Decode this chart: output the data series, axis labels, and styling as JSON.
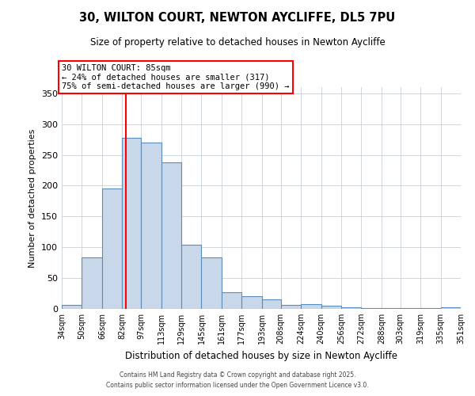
{
  "title": "30, WILTON COURT, NEWTON AYCLIFFE, DL5 7PU",
  "subtitle": "Size of property relative to detached houses in Newton Aycliffe",
  "xlabel": "Distribution of detached houses by size in Newton Aycliffe",
  "ylabel": "Number of detached properties",
  "bar_color": "#c8d8ea",
  "bar_edge_color": "#5b8db8",
  "background_color": "#ffffff",
  "grid_color": "#c8d0d8",
  "red_line_x": 85,
  "bin_edges": [
    34,
    50,
    66,
    82,
    97,
    113,
    129,
    145,
    161,
    177,
    193,
    208,
    224,
    240,
    256,
    272,
    288,
    303,
    319,
    335,
    351
  ],
  "bin_labels": [
    "34sqm",
    "50sqm",
    "66sqm",
    "82sqm",
    "97sqm",
    "113sqm",
    "129sqm",
    "145sqm",
    "161sqm",
    "177sqm",
    "193sqm",
    "208sqm",
    "224sqm",
    "240sqm",
    "256sqm",
    "272sqm",
    "288sqm",
    "303sqm",
    "319sqm",
    "335sqm",
    "351sqm"
  ],
  "bar_heights": [
    6,
    83,
    195,
    278,
    270,
    238,
    104,
    83,
    27,
    20,
    15,
    6,
    8,
    5,
    2,
    1,
    1,
    1,
    1,
    2
  ],
  "ylim": [
    0,
    360
  ],
  "yticks": [
    0,
    50,
    100,
    150,
    200,
    250,
    300,
    350
  ],
  "annotation_title": "30 WILTON COURT: 85sqm",
  "annotation_line1": "← 24% of detached houses are smaller (317)",
  "annotation_line2": "75% of semi-detached houses are larger (990) →",
  "footnote1": "Contains HM Land Registry data © Crown copyright and database right 2025.",
  "footnote2": "Contains public sector information licensed under the Open Government Licence v3.0."
}
